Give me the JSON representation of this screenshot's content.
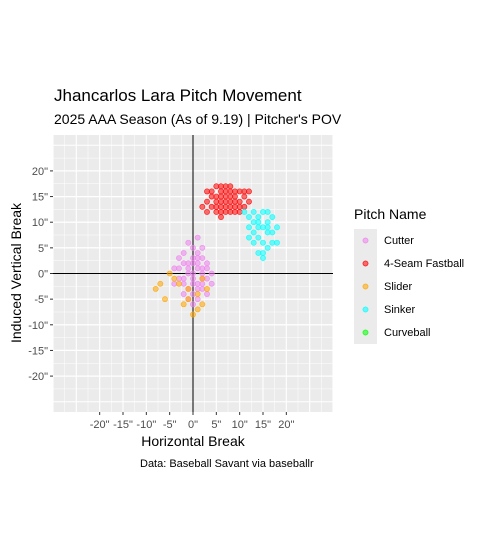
{
  "chart_data": {
    "type": "scatter",
    "title": "Jhancarlos Lara Pitch Movement",
    "subtitle": "2025 AAA Season (As of 9.19) | Pitcher's POV",
    "caption": "Data: Baseball Savant via baseballr",
    "xlabel": "Horizontal Break",
    "ylabel": "Induced Vertical Break",
    "xlim": [
      -30,
      30
    ],
    "ylim": [
      -27,
      27
    ],
    "x_ticks": [
      -20,
      -15,
      -10,
      -5,
      0,
      5,
      10,
      15,
      20
    ],
    "x_tick_labels": [
      "-20\"",
      "-15\"",
      "-10\"",
      "-5\"",
      "0\"",
      "5\"",
      "10\"",
      "15\"",
      "20\""
    ],
    "y_ticks": [
      -20,
      -15,
      -10,
      -5,
      0,
      5,
      10,
      15,
      20
    ],
    "y_tick_labels": [
      "-20\"",
      "-15\"",
      "-10\"",
      "-5\"",
      "0\"",
      "5\"",
      "10\"",
      "15\"",
      "20\""
    ],
    "grid": true,
    "reference_lines": {
      "x": 0,
      "y": 0
    },
    "legend": {
      "title": "Pitch Name",
      "position": "right"
    },
    "series": [
      {
        "name": "Cutter",
        "color": "#ee82ee",
        "points": [
          [
            -1,
            1
          ],
          [
            0,
            -1
          ],
          [
            1,
            2
          ],
          [
            2,
            0
          ],
          [
            -2,
            -2
          ],
          [
            0,
            3
          ],
          [
            3,
            1
          ],
          [
            -1,
            -3
          ],
          [
            1,
            -2
          ],
          [
            2,
            3
          ],
          [
            -3,
            1
          ],
          [
            0,
            0
          ],
          [
            1,
            1
          ],
          [
            -2,
            2
          ],
          [
            2,
            -3
          ],
          [
            0,
            5
          ],
          [
            -1,
            6
          ],
          [
            1,
            4
          ],
          [
            3,
            -1
          ],
          [
            -2,
            -4
          ],
          [
            0,
            -4
          ],
          [
            1,
            -5
          ],
          [
            2,
            -1
          ],
          [
            -1,
            2
          ],
          [
            3,
            2
          ],
          [
            -3,
            -1
          ],
          [
            1,
            -3
          ],
          [
            0,
            2
          ],
          [
            -1,
            0
          ],
          [
            2,
            1
          ],
          [
            -4,
            -2
          ],
          [
            4,
            0
          ],
          [
            -4,
            1
          ],
          [
            3,
            -4
          ],
          [
            0,
            -6
          ],
          [
            1,
            7
          ],
          [
            -2,
            4
          ],
          [
            2,
            5
          ],
          [
            -3,
            3
          ],
          [
            4,
            -2
          ],
          [
            -2,
            -1
          ],
          [
            1,
            3
          ],
          [
            0,
            -2
          ],
          [
            -1,
            -5
          ],
          [
            2,
            -2
          ]
        ]
      },
      {
        "name": "4-Seam Fastball",
        "color": "#ff0000",
        "points": [
          [
            5,
            14
          ],
          [
            6,
            15
          ],
          [
            7,
            13
          ],
          [
            8,
            16
          ],
          [
            9,
            14
          ],
          [
            6,
            12
          ],
          [
            7,
            17
          ],
          [
            8,
            15
          ],
          [
            10,
            13
          ],
          [
            4,
            15
          ],
          [
            5,
            17
          ],
          [
            6,
            13
          ],
          [
            9,
            16
          ],
          [
            11,
            15
          ],
          [
            3,
            14
          ],
          [
            7,
            14
          ],
          [
            8,
            12
          ],
          [
            10,
            16
          ],
          [
            5,
            12
          ],
          [
            6,
            16
          ],
          [
            8,
            13
          ],
          [
            9,
            12
          ],
          [
            4,
            13
          ],
          [
            7,
            16
          ],
          [
            11,
            13
          ],
          [
            3,
            12
          ],
          [
            6,
            14
          ],
          [
            9,
            15
          ],
          [
            12,
            14
          ],
          [
            2,
            13
          ],
          [
            5,
            15
          ],
          [
            8,
            17
          ],
          [
            10,
            14
          ],
          [
            4,
            16
          ],
          [
            7,
            12
          ],
          [
            9,
            13
          ],
          [
            6,
            11
          ],
          [
            8,
            14
          ],
          [
            5,
            13
          ],
          [
            12,
            16
          ],
          [
            3,
            16
          ],
          [
            7,
            15
          ],
          [
            10,
            12
          ],
          [
            11,
            16
          ],
          [
            6,
            17
          ]
        ]
      },
      {
        "name": "Slider",
        "color": "#ffa500",
        "points": [
          [
            -8,
            -3
          ],
          [
            -6,
            -5
          ],
          [
            -4,
            -1
          ],
          [
            -2,
            -6
          ],
          [
            0,
            -8
          ],
          [
            1,
            -4
          ],
          [
            2,
            -6
          ],
          [
            -3,
            -2
          ],
          [
            -1,
            -5
          ],
          [
            3,
            -3
          ],
          [
            -5,
            0
          ],
          [
            -7,
            -2
          ],
          [
            2,
            -1
          ],
          [
            -1,
            -3
          ],
          [
            1,
            -7
          ]
        ]
      },
      {
        "name": "Sinker",
        "color": "#00ffff",
        "points": [
          [
            12,
            11
          ],
          [
            13,
            10
          ],
          [
            14,
            9
          ],
          [
            15,
            12
          ],
          [
            16,
            8
          ],
          [
            17,
            11
          ],
          [
            14,
            7
          ],
          [
            15,
            6
          ],
          [
            13,
            8
          ],
          [
            16,
            10
          ],
          [
            17,
            6
          ],
          [
            14,
            4
          ],
          [
            15,
            3
          ],
          [
            12,
            9
          ],
          [
            13,
            12
          ],
          [
            16,
            5
          ],
          [
            18,
            9
          ],
          [
            11,
            12
          ],
          [
            15,
            9
          ],
          [
            14,
            11
          ],
          [
            17,
            8
          ],
          [
            16,
            12
          ],
          [
            13,
            6
          ],
          [
            15,
            4
          ],
          [
            12,
            7
          ],
          [
            18,
            6
          ],
          [
            14,
            10
          ],
          [
            16,
            9
          ]
        ]
      },
      {
        "name": "Curveball",
        "color": "#00ff00",
        "points": []
      }
    ]
  }
}
